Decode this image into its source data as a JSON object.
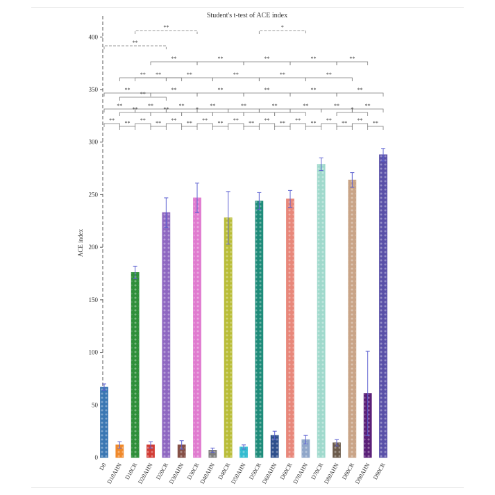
{
  "chart_data": {
    "type": "bar",
    "title": "Student's t-test of ACE index",
    "ylabel": "ACE index",
    "xlabel": "",
    "ylim": [
      0,
      420
    ],
    "yticks": [
      0,
      50,
      100,
      150,
      200,
      250,
      300,
      350,
      400
    ],
    "grid": false,
    "categories": [
      "D0",
      "D10AHN",
      "D10CR",
      "D20AHN",
      "D20CR",
      "D30AHN",
      "D30CR",
      "D40AHN",
      "D40CR",
      "D50AHN",
      "D50CR",
      "D60AHN",
      "D60CR",
      "D70AHN",
      "D70CR",
      "D80AHN",
      "D80CR",
      "D90AHN",
      "D90CR"
    ],
    "values": [
      67,
      12,
      176,
      12,
      233,
      12,
      247,
      7,
      228,
      10,
      244,
      21,
      246,
      17,
      279,
      14,
      264,
      61,
      288
    ],
    "errors": [
      3,
      3,
      6,
      3,
      14,
      4,
      14,
      2,
      25,
      2,
      8,
      4,
      8,
      4,
      6,
      3,
      7,
      40,
      6
    ],
    "colors": [
      "#3a77b3",
      "#f0892a",
      "#2f8f3a",
      "#d13b34",
      "#8e67c1",
      "#855046",
      "#e07bcf",
      "#7d7d7d",
      "#b9bd38",
      "#33bcd0",
      "#1f8c7a",
      "#2d4f8c",
      "#e8877a",
      "#8fa6c9",
      "#9fd9cc",
      "#6b5a4a",
      "#c9a487",
      "#5a1f78",
      "#5950a8"
    ],
    "significance": {
      "adjacent": [
        "**",
        "**",
        "**",
        "**",
        "**",
        "**",
        "**",
        "**",
        "**",
        "**",
        "**",
        "**",
        "**",
        "**",
        "**",
        "**",
        "**",
        "**"
      ],
      "step2": [
        "**",
        "**",
        "**",
        "**",
        "**",
        "**",
        "**",
        "**",
        "**",
        "**",
        "**",
        "*",
        "",
        "",
        "",
        "*"
      ],
      "step4": [
        "**",
        "**",
        "**",
        "**",
        "**",
        "**",
        "**"
      ],
      "step6": [
        "**",
        "**",
        "**",
        "**",
        "**",
        "**"
      ],
      "step8": [
        "**",
        "**",
        "**",
        "**",
        "**"
      ],
      "long": [
        "**",
        "**",
        "*"
      ]
    }
  }
}
